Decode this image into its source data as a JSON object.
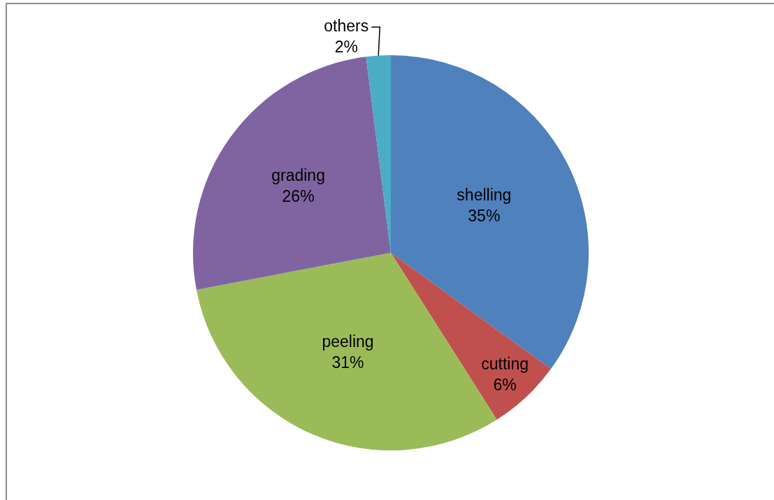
{
  "chart_data": {
    "type": "pie",
    "categories": [
      "shelling",
      "cutting",
      "peeling",
      "grading",
      "others"
    ],
    "values": [
      35,
      6,
      31,
      26,
      2
    ],
    "value_labels": [
      "35%",
      "6%",
      "31%",
      "26%",
      "2%"
    ],
    "colors": [
      "#4f81bd",
      "#c0504d",
      "#9bbb59",
      "#8064a2",
      "#4bacc6"
    ],
    "legend": false
  }
}
